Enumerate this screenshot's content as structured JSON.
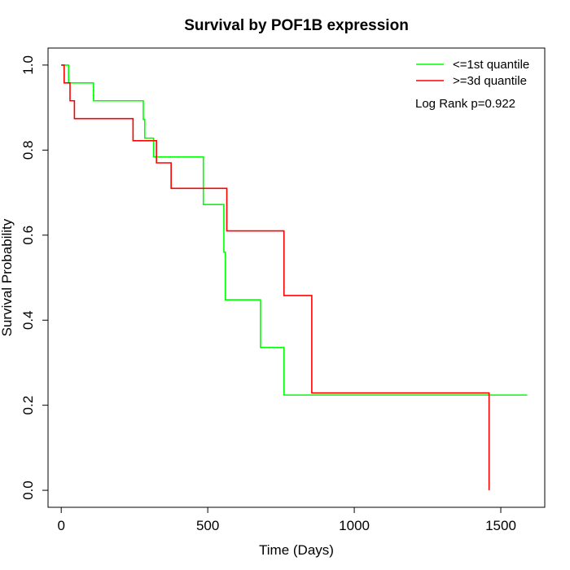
{
  "chart_data": {
    "type": "line",
    "title": "Survival by POF1B expression",
    "xlabel": "Time (Days)",
    "ylabel": "Survival Probability",
    "xlim": [
      -45,
      1650
    ],
    "ylim": [
      -0.04,
      1.04
    ],
    "xticks": [
      0,
      500,
      1000,
      1500
    ],
    "yticks": [
      0.0,
      0.2,
      0.4,
      0.6,
      0.8,
      1.0
    ],
    "xtick_labels": [
      "0",
      "500",
      "1000",
      "1500"
    ],
    "ytick_labels": [
      "0.0",
      "0.2",
      "0.4",
      "0.6",
      "0.8",
      "1.0"
    ],
    "grid": false,
    "legend_position": "top-right",
    "annotation": "Log Rank p=0.922",
    "series": [
      {
        "name": "<=1st quantile",
        "color": "#00ff00",
        "step_points": [
          [
            0,
            1.0
          ],
          [
            25,
            1.0
          ],
          [
            25,
            0.958
          ],
          [
            110,
            0.958
          ],
          [
            110,
            0.916
          ],
          [
            280,
            0.916
          ],
          [
            280,
            0.872
          ],
          [
            285,
            0.872
          ],
          [
            285,
            0.828
          ],
          [
            315,
            0.828
          ],
          [
            315,
            0.784
          ],
          [
            485,
            0.784
          ],
          [
            485,
            0.672
          ],
          [
            555,
            0.672
          ],
          [
            555,
            0.56
          ],
          [
            560,
            0.56
          ],
          [
            560,
            0.448
          ],
          [
            680,
            0.448
          ],
          [
            680,
            0.336
          ],
          [
            760,
            0.336
          ],
          [
            760,
            0.224
          ],
          [
            1590,
            0.224
          ]
        ]
      },
      {
        "name": ">=3d quantile",
        "color": "#ff0000",
        "step_points": [
          [
            0,
            1.0
          ],
          [
            10,
            1.0
          ],
          [
            10,
            0.958
          ],
          [
            30,
            0.958
          ],
          [
            30,
            0.916
          ],
          [
            45,
            0.916
          ],
          [
            45,
            0.874
          ],
          [
            245,
            0.874
          ],
          [
            245,
            0.822
          ],
          [
            325,
            0.822
          ],
          [
            325,
            0.77
          ],
          [
            375,
            0.77
          ],
          [
            375,
            0.71
          ],
          [
            565,
            0.71
          ],
          [
            565,
            0.61
          ],
          [
            760,
            0.61
          ],
          [
            760,
            0.458
          ],
          [
            855,
            0.458
          ],
          [
            855,
            0.229
          ],
          [
            1460,
            0.229
          ],
          [
            1460,
            0.0
          ]
        ]
      }
    ]
  }
}
